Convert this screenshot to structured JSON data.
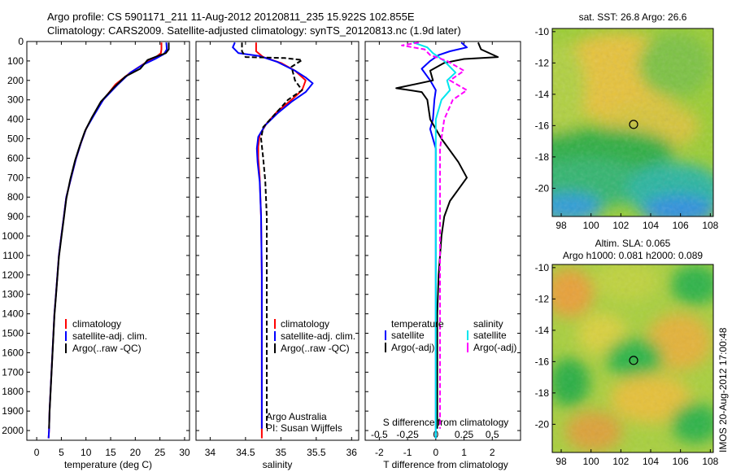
{
  "header": {
    "title_line1": "Argo profile: CS 5901171_211 11-Aug-2012 20120811_235 15.922S 102.855E",
    "title_line2": "Climatology: CARS2009. Satellite-adjusted climatology: synTS_20120813.nc (1.9d later)"
  },
  "colors": {
    "climatology": "#ff0000",
    "satellite": "#0000ff",
    "argo": "#000000",
    "salinity_satellite": "#00e5ee",
    "salinity_argo": "#ff00ff"
  },
  "chart_data": [
    {
      "type": "line",
      "panel": "temperature",
      "xlabel": "temperature (deg C)",
      "xlim": [
        -2,
        31
      ],
      "ylim": [
        2050,
        0
      ],
      "xticks": [
        0,
        5,
        10,
        15,
        20,
        25,
        30
      ],
      "yticks": [
        0,
        100,
        200,
        300,
        400,
        500,
        600,
        700,
        800,
        900,
        1000,
        1100,
        1200,
        1300,
        1400,
        1500,
        1600,
        1700,
        1800,
        1900,
        2000
      ],
      "legend": [
        "climatology",
        "satellite-adj. clim.",
        "Argo(..raw -QC)"
      ],
      "series": [
        {
          "name": "climatology",
          "color": "#ff0000",
          "points": [
            [
              25.3,
              5
            ],
            [
              25.3,
              40
            ],
            [
              25.2,
              60
            ],
            [
              24.2,
              80
            ],
            [
              22,
              110
            ],
            [
              19,
              160
            ],
            [
              16,
              220
            ],
            [
              13.5,
              300
            ],
            [
              11.5,
              380
            ],
            [
              10,
              450
            ],
            [
              9,
              520
            ],
            [
              8,
              600
            ],
            [
              7,
              700
            ],
            [
              6,
              800
            ],
            [
              5.5,
              900
            ],
            [
              5,
              1000
            ],
            [
              4.5,
              1100
            ],
            [
              4.2,
              1200
            ],
            [
              3.9,
              1300
            ],
            [
              3.6,
              1400
            ],
            [
              3.4,
              1500
            ],
            [
              3.2,
              1600
            ],
            [
              3,
              1700
            ],
            [
              2.8,
              1800
            ],
            [
              2.6,
              1900
            ],
            [
              2.5,
              2000
            ],
            [
              2.4,
              2040
            ]
          ]
        },
        {
          "name": "satellite-adj. clim.",
          "color": "#0000ff",
          "points": [
            [
              26.3,
              5
            ],
            [
              26.4,
              40
            ],
            [
              25.8,
              65
            ],
            [
              24,
              90
            ],
            [
              21.5,
              120
            ],
            [
              19,
              160
            ],
            [
              16.5,
              220
            ],
            [
              13.5,
              300
            ],
            [
              11.6,
              380
            ],
            [
              10,
              450
            ],
            [
              9,
              520
            ],
            [
              8,
              600
            ],
            [
              7,
              700
            ],
            [
              6,
              800
            ],
            [
              5.5,
              900
            ],
            [
              5,
              1000
            ],
            [
              4.5,
              1100
            ],
            [
              4.2,
              1200
            ],
            [
              3.9,
              1300
            ],
            [
              3.6,
              1400
            ],
            [
              3.4,
              1500
            ],
            [
              3.2,
              1600
            ],
            [
              3,
              1700
            ],
            [
              2.8,
              1800
            ],
            [
              2.6,
              1900
            ],
            [
              2.5,
              2000
            ],
            [
              2.4,
              2040
            ]
          ]
        },
        {
          "name": "Argo(..raw -QC)",
          "color": "#000000",
          "points": [
            [
              26.8,
              5
            ],
            [
              26.8,
              40
            ],
            [
              26.2,
              60
            ],
            [
              24.5,
              75
            ],
            [
              22.5,
              95
            ],
            [
              21,
              140
            ],
            [
              18,
              180
            ],
            [
              15.5,
              240
            ],
            [
              13,
              310
            ],
            [
              11.2,
              390
            ],
            [
              9.8,
              460
            ],
            [
              8.8,
              530
            ],
            [
              7.8,
              610
            ],
            [
              6.8,
              710
            ],
            [
              6,
              810
            ],
            [
              5.5,
              910
            ],
            [
              5,
              1010
            ],
            [
              4.5,
              1110
            ],
            [
              4.2,
              1210
            ],
            [
              3.9,
              1310
            ],
            [
              3.6,
              1410
            ],
            [
              3.4,
              1510
            ],
            [
              3.2,
              1610
            ],
            [
              3,
              1710
            ],
            [
              2.8,
              1810
            ],
            [
              2.6,
              1910
            ],
            [
              2.5,
              1990
            ]
          ]
        }
      ]
    },
    {
      "type": "line",
      "panel": "salinity",
      "xlabel": "salinity",
      "xlim": [
        33.8,
        36.1
      ],
      "ylim": [
        2050,
        0
      ],
      "xticks": [
        34,
        34.5,
        35,
        35.5,
        36
      ],
      "legend": [
        "climatology",
        "satellite-adj. clim.",
        "Argo(..raw -QC)"
      ],
      "annotation_line1": "Argo Australia",
      "annotation_line2": "PI: Susan Wijffels",
      "series": [
        {
          "name": "climatology",
          "color": "#ff0000",
          "points": [
            [
              34.65,
              5
            ],
            [
              34.65,
              50
            ],
            [
              34.75,
              80
            ],
            [
              35,
              110
            ],
            [
              35.2,
              150
            ],
            [
              35.35,
              200
            ],
            [
              35.3,
              250
            ],
            [
              35.15,
              300
            ],
            [
              34.95,
              360
            ],
            [
              34.8,
              420
            ],
            [
              34.7,
              480
            ],
            [
              34.68,
              540
            ],
            [
              34.68,
              600
            ],
            [
              34.7,
              700
            ],
            [
              34.72,
              900
            ],
            [
              34.73,
              1200
            ],
            [
              34.73,
              1500
            ],
            [
              34.73,
              1800
            ],
            [
              34.73,
              2040
            ]
          ]
        },
        {
          "name": "satellite-adj. clim.",
          "color": "#0000ff",
          "points": [
            [
              34.35,
              5
            ],
            [
              34.32,
              30
            ],
            [
              34.4,
              60
            ],
            [
              34.7,
              75
            ],
            [
              34.95,
              105
            ],
            [
              35.2,
              150
            ],
            [
              35.35,
              185
            ],
            [
              35.45,
              215
            ],
            [
              35.35,
              260
            ],
            [
              35.15,
              310
            ],
            [
              34.95,
              370
            ],
            [
              34.78,
              430
            ],
            [
              34.68,
              490
            ],
            [
              34.66,
              550
            ],
            [
              34.67,
              620
            ],
            [
              34.7,
              720
            ],
            [
              34.72,
              900
            ],
            [
              34.73,
              1200
            ],
            [
              34.73,
              1500
            ],
            [
              34.73,
              1800
            ],
            [
              34.73,
              1990
            ]
          ]
        },
        {
          "name": "Argo(..raw -QC)",
          "color": "#000000",
          "points": [
            [
              34.45,
              5
            ],
            [
              34.45,
              50
            ],
            [
              34.5,
              80
            ],
            [
              35.05,
              85
            ],
            [
              35.3,
              95
            ],
            [
              35.15,
              130
            ],
            [
              35.2,
              200
            ],
            [
              35.3,
              250
            ],
            [
              35.1,
              300
            ],
            [
              34.9,
              380
            ],
            [
              34.75,
              440
            ],
            [
              34.72,
              500
            ],
            [
              34.75,
              600
            ],
            [
              34.78,
              720
            ],
            [
              34.8,
              900
            ],
            [
              34.8,
              1100
            ],
            [
              34.8,
              1300
            ],
            [
              34.8,
              1500
            ],
            [
              34.8,
              1700
            ],
            [
              34.8,
              1900
            ],
            [
              34.8,
              1990
            ]
          ]
        }
      ]
    },
    {
      "type": "line",
      "panel": "differences",
      "xlabel": "T difference from climatology",
      "xlabel_top": "S difference from climatology",
      "xlim": [
        -2.5,
        3
      ],
      "ylim": [
        2050,
        0
      ],
      "xticks": [
        -2,
        -1,
        0,
        1,
        2
      ],
      "xticks_salinity_labels": [
        "-0.5",
        "-0.25",
        "0",
        "0.25",
        "0.5"
      ],
      "legend_temperature_title": "temperature",
      "legend_salinity_title": "salinity",
      "legend": [
        "satellite",
        "Argo(-adj)",
        "satellite",
        "Argo(-adj)"
      ],
      "series": [
        {
          "name": "temperature satellite",
          "color": "#0000ff",
          "points": [
            [
              0.9,
              5
            ],
            [
              1.1,
              30
            ],
            [
              0.5,
              50
            ],
            [
              0.1,
              70
            ],
            [
              -0.2,
              100
            ],
            [
              -0.5,
              140
            ],
            [
              -0.2,
              200
            ],
            [
              0,
              250
            ],
            [
              -0.05,
              300
            ],
            [
              -0.1,
              400
            ],
            [
              -0.2,
              450
            ],
            [
              0,
              550
            ],
            [
              0,
              700
            ],
            [
              0,
              1000
            ],
            [
              0,
              1400
            ],
            [
              0,
              1800
            ],
            [
              0,
              2040
            ]
          ]
        },
        {
          "name": "temperature Argo(-adj)",
          "color": "#000000",
          "points": [
            [
              1.5,
              5
            ],
            [
              1.6,
              40
            ],
            [
              2.2,
              80
            ],
            [
              1,
              90
            ],
            [
              0.3,
              110
            ],
            [
              -0.2,
              150
            ],
            [
              -0.1,
              200
            ],
            [
              -1.4,
              240
            ],
            [
              -0.5,
              260
            ],
            [
              -0.3,
              300
            ],
            [
              -0.2,
              400
            ],
            [
              0.2,
              500
            ],
            [
              0.8,
              620
            ],
            [
              1.1,
              700
            ],
            [
              0.8,
              760
            ],
            [
              0.5,
              820
            ],
            [
              0.3,
              900
            ],
            [
              0.2,
              1000
            ],
            [
              0.1,
              1200
            ],
            [
              0.05,
              1400
            ],
            [
              0.05,
              1600
            ],
            [
              0.05,
              1800
            ],
            [
              0.05,
              1990
            ]
          ]
        },
        {
          "name": "salinity satellite",
          "color": "#00e5ee",
          "points": [
            [
              -0.8,
              5
            ],
            [
              -0.3,
              30
            ],
            [
              -0.1,
              60
            ],
            [
              0.3,
              100
            ],
            [
              0.7,
              160
            ],
            [
              0.4,
              200
            ],
            [
              0.5,
              250
            ],
            [
              0.2,
              300
            ],
            [
              0,
              400
            ],
            [
              0,
              550
            ],
            [
              0,
              700
            ],
            [
              0,
              1000
            ],
            [
              0,
              1400
            ],
            [
              0,
              1800
            ],
            [
              0,
              2040
            ]
          ]
        },
        {
          "name": "salinity Argo(-adj)",
          "color": "#ff00ff",
          "points": [
            [
              -0.6,
              5
            ],
            [
              -1.2,
              20
            ],
            [
              -0.4,
              40
            ],
            [
              -0.2,
              70
            ],
            [
              0.4,
              100
            ],
            [
              1,
              150
            ],
            [
              0.5,
              200
            ],
            [
              1.1,
              250
            ],
            [
              0.6,
              300
            ],
            [
              0.3,
              400
            ],
            [
              0.15,
              550
            ],
            [
              0.15,
              700
            ],
            [
              0.15,
              1000
            ],
            [
              0.15,
              1400
            ],
            [
              0.15,
              1800
            ],
            [
              0.15,
              1990
            ]
          ]
        }
      ]
    },
    {
      "type": "heatmap",
      "panel": "sst_map",
      "title": "sat. SST: 26.8 Argo: 26.6",
      "xticks": [
        98,
        100,
        102,
        104,
        106,
        108
      ],
      "yticks": [
        -10,
        -12,
        -14,
        -16,
        -18,
        -20
      ],
      "xlim": [
        97.4,
        108.2
      ],
      "ylim": [
        -21.8,
        -9.8
      ],
      "marker": [
        102.855,
        -15.922
      ]
    },
    {
      "type": "heatmap",
      "panel": "sla_map",
      "title_line1": "Altim. SLA: 0.065",
      "title_line2": "Argo h1000: 0.081 h2000: 0.089",
      "xticks": [
        98,
        100,
        102,
        104,
        106,
        108
      ],
      "yticks": [
        -10,
        -12,
        -14,
        -16,
        -18,
        -20
      ],
      "xlim": [
        97.4,
        108.2
      ],
      "ylim": [
        -21.8,
        -9.8
      ],
      "marker": [
        102.855,
        -15.922
      ]
    }
  ],
  "footer": {
    "watermark": "IMOS 20-Aug-2012 17:00:48"
  }
}
